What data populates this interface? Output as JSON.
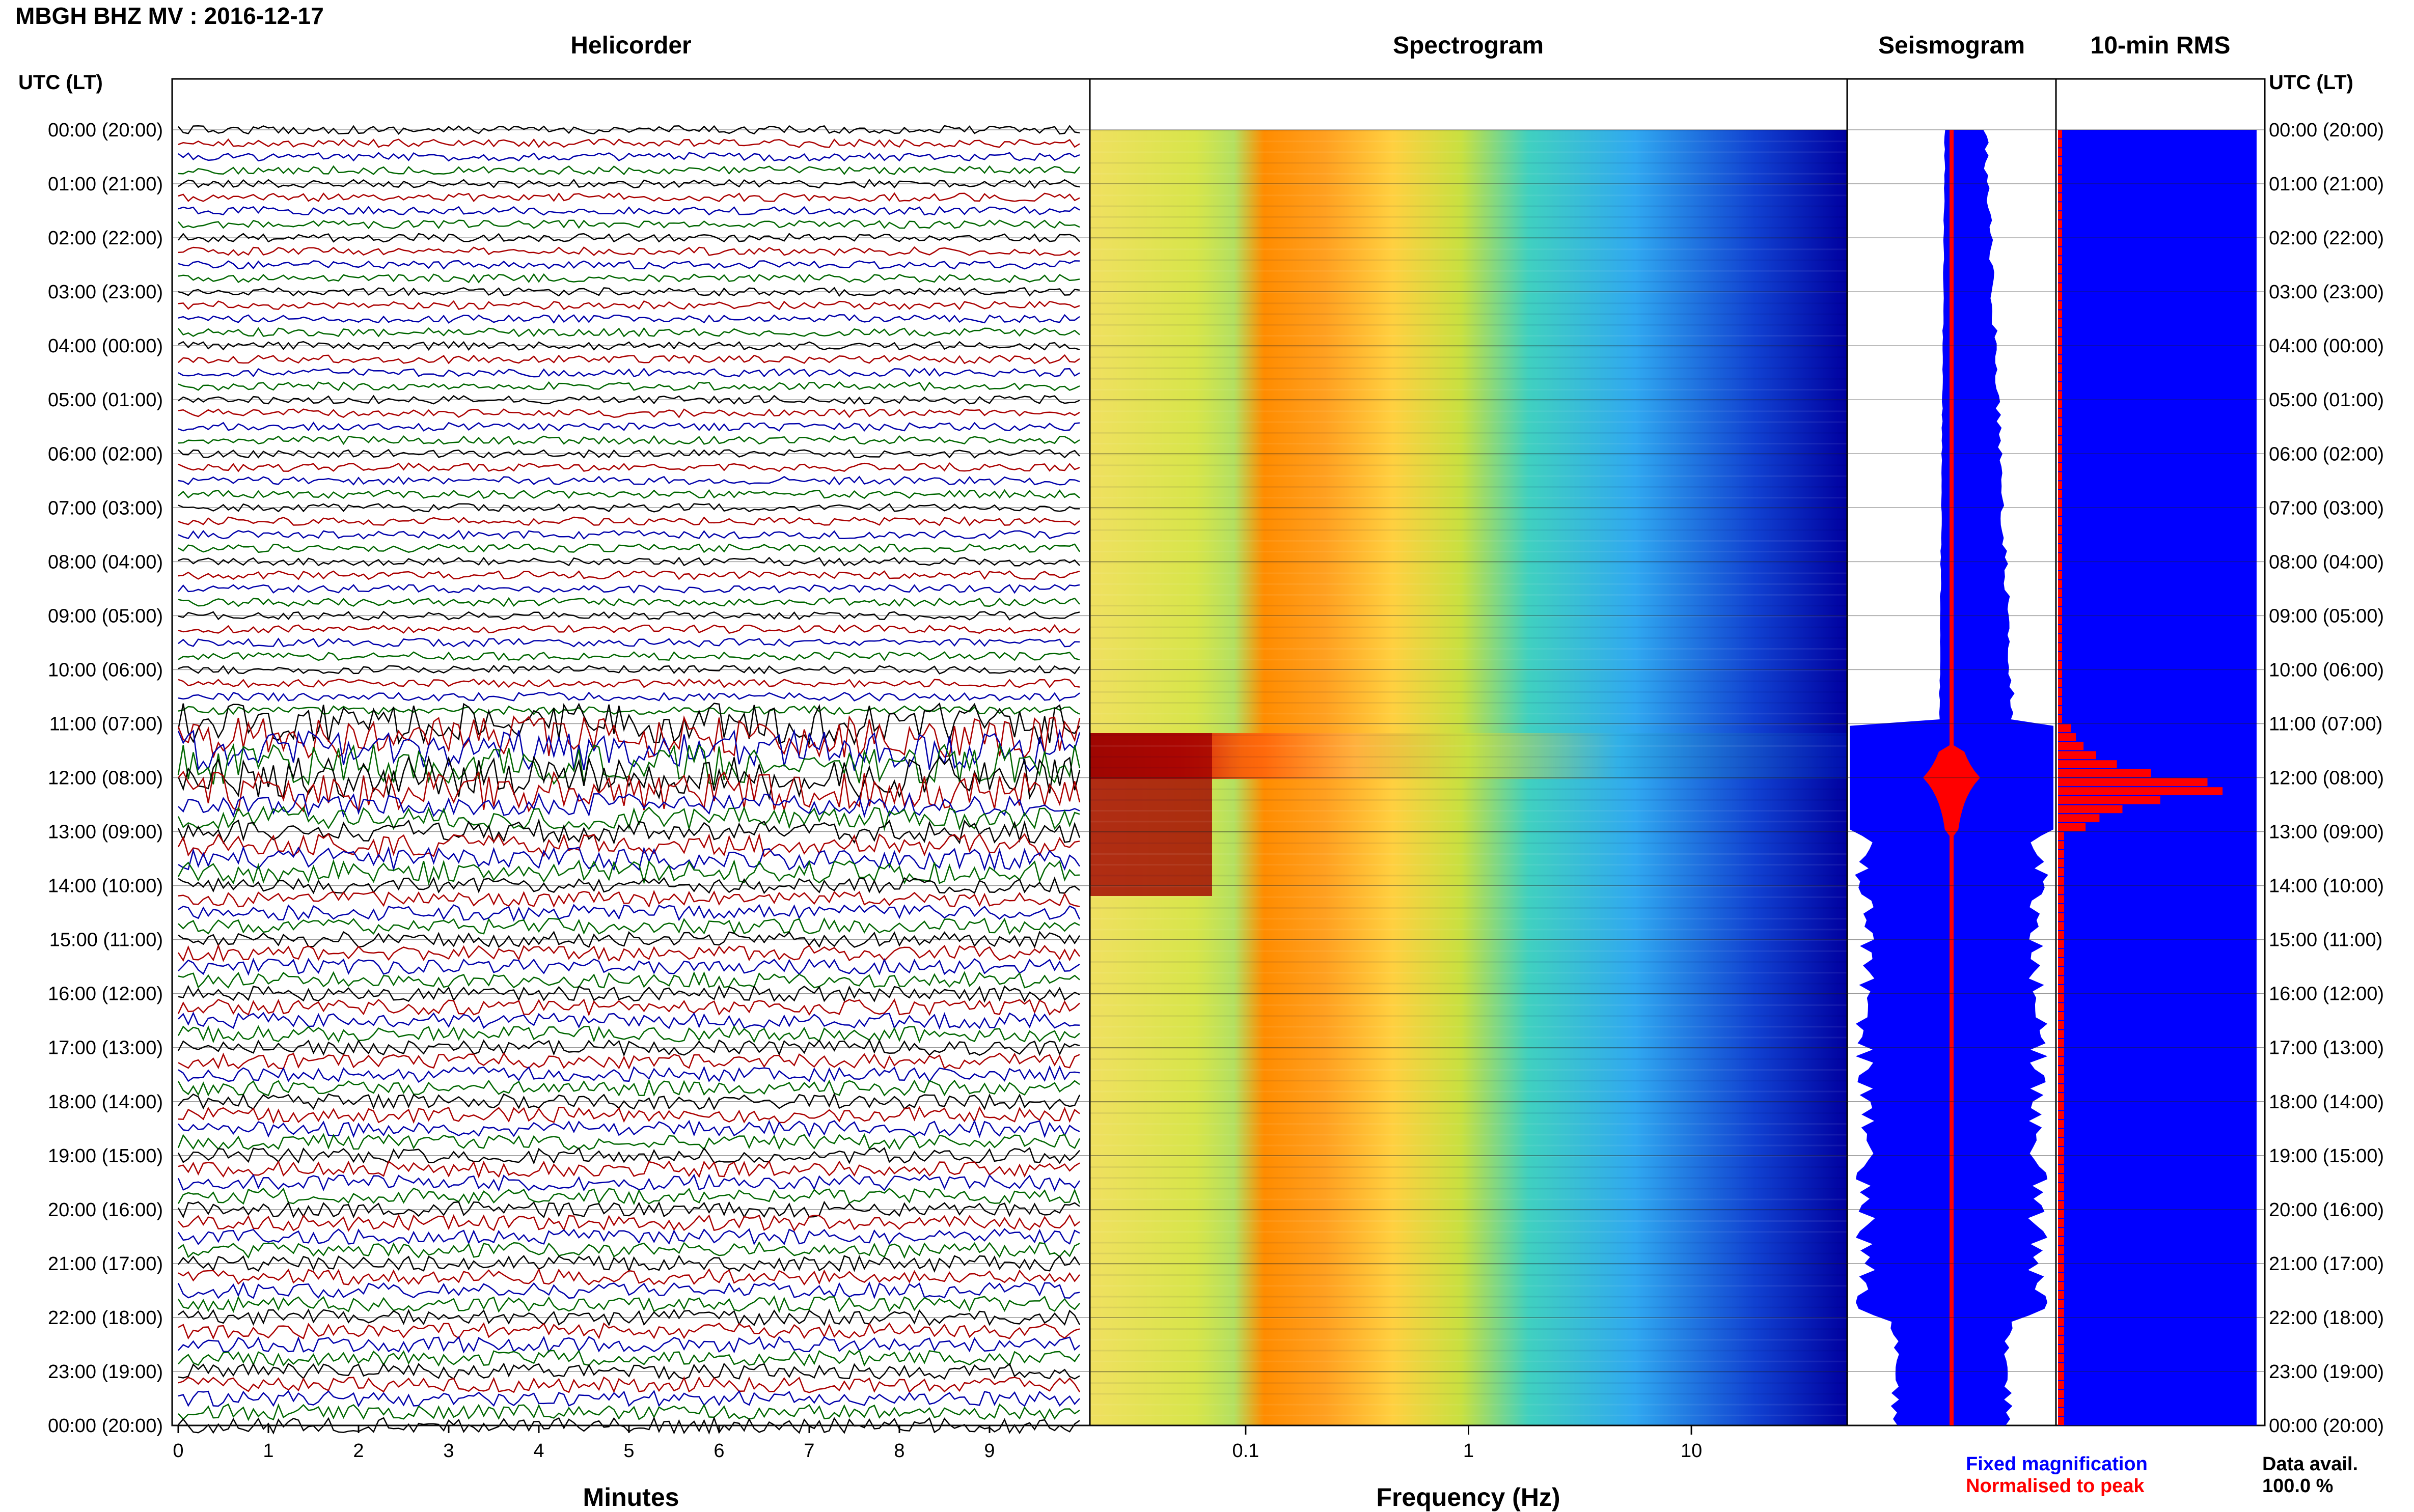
{
  "header": {
    "title": "MBGH BHZ MV : 2016-12-17",
    "time_axis_label_left": "UTC (LT)",
    "time_axis_label_right": "UTC (LT)"
  },
  "panels": {
    "helicorder": "Helicorder",
    "spectrogram": "Spectrogram",
    "seismogram": "Seismogram",
    "rms": "10-min RMS"
  },
  "legend": {
    "fixed": "Fixed magnification",
    "normalised": "Normalised to peak",
    "fixed_color": "#0000ff",
    "normalised_color": "#ff0000"
  },
  "data_avail": {
    "label": "Data avail.",
    "value": "100.0 %"
  },
  "chart_data": [
    {
      "type": "line",
      "panel": "helicorder",
      "title": "Helicorder",
      "xlabel": "Minutes",
      "x_ticks": [
        "0",
        "1",
        "2",
        "3",
        "4",
        "5",
        "6",
        "7",
        "8",
        "9"
      ],
      "xlim": [
        0,
        10
      ],
      "y_ticks": [
        "00:00 (20:00)",
        "01:00 (21:00)",
        "02:00 (22:00)",
        "03:00 (23:00)",
        "04:00 (00:00)",
        "05:00 (01:00)",
        "06:00 (02:00)",
        "07:00 (03:00)",
        "08:00 (04:00)",
        "09:00 (05:00)",
        "10:00 (06:00)",
        "11:00 (07:00)",
        "12:00 (08:00)",
        "13:00 (09:00)",
        "14:00 (10:00)",
        "15:00 (11:00)",
        "16:00 (12:00)",
        "17:00 (13:00)",
        "18:00 (14:00)",
        "19:00 (15:00)",
        "20:00 (16:00)",
        "21:00 (17:00)",
        "22:00 (18:00)",
        "23:00 (19:00)",
        "00:00 (20:00)"
      ],
      "trace_colors": [
        "#000000",
        "#aa0000",
        "#0000aa",
        "#006600"
      ],
      "grid": true
    },
    {
      "type": "heatmap",
      "panel": "spectrogram",
      "title": "Spectrogram",
      "xlabel": "Frequency (Hz)",
      "x_scale": "log",
      "x_ticks": [
        "0.1",
        "1",
        "10"
      ],
      "xlim": [
        0.02,
        50
      ]
    },
    {
      "type": "area",
      "panel": "seismogram",
      "title": "Seismogram",
      "series": [
        {
          "name": "Fixed magnification",
          "color": "#0000ff"
        },
        {
          "name": "Normalised to peak",
          "color": "#ff0000"
        }
      ]
    },
    {
      "type": "bar",
      "panel": "rms",
      "title": "10-min RMS",
      "orientation": "horizontal",
      "series": [
        {
          "name": "Fixed magnification",
          "color": "#0000ff",
          "values_relative": [
            0.97
          ]
        },
        {
          "name": "Normalised to peak",
          "color": "#ff0000"
        }
      ]
    }
  ]
}
